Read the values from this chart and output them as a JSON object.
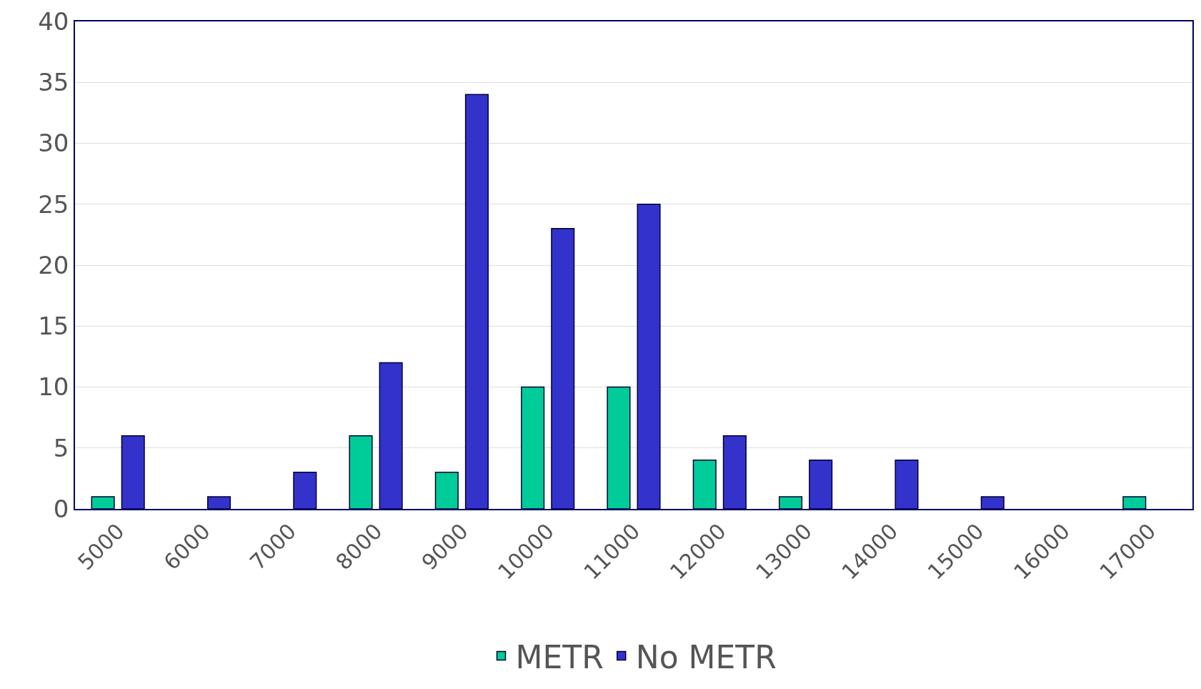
{
  "chart_data": {
    "type": "bar",
    "categories": [
      "5000",
      "6000",
      "7000",
      "8000",
      "9000",
      "10000",
      "11000",
      "12000",
      "13000",
      "14000",
      "15000",
      "16000",
      "17000"
    ],
    "series": [
      {
        "name": "METR",
        "color": "#00cc99",
        "values": [
          1,
          0,
          0,
          6,
          3,
          10,
          10,
          4,
          1,
          0,
          0,
          0,
          1
        ]
      },
      {
        "name": "No METR",
        "color": "#3333cc",
        "values": [
          6,
          1,
          3,
          12,
          34,
          23,
          25,
          6,
          4,
          4,
          1,
          0,
          0
        ]
      }
    ],
    "ylim": [
      0,
      40
    ],
    "yticks": [
      0,
      5,
      10,
      15,
      20,
      25,
      30,
      35,
      40
    ],
    "grid": "y",
    "legend": "bottom"
  }
}
